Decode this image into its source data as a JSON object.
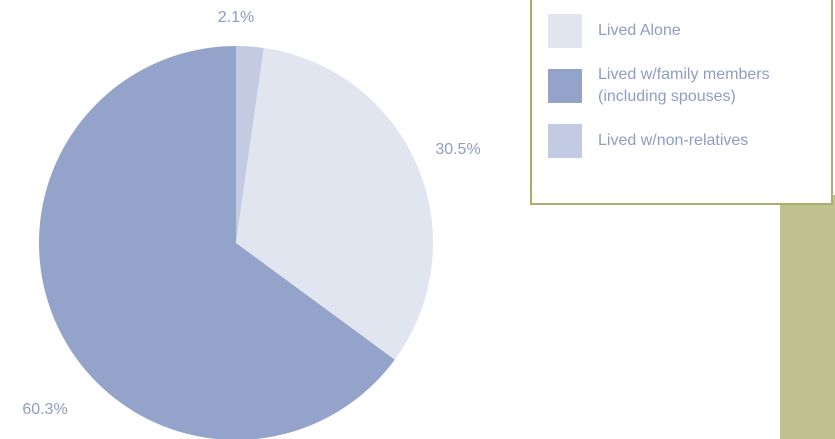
{
  "chart_data": {
    "type": "pie",
    "categories": [
      "Lived Alone",
      "Lived w/family members (including spouses)",
      "Lived w/non-relatives"
    ],
    "values": [
      30.5,
      60.3,
      2.1
    ],
    "value_labels": [
      "30.5%",
      "60.3%",
      "2.1%"
    ],
    "colors": [
      "#e1e5f0",
      "#93a3c9",
      "#c3cbe2"
    ],
    "legend": "top-right"
  }
}
